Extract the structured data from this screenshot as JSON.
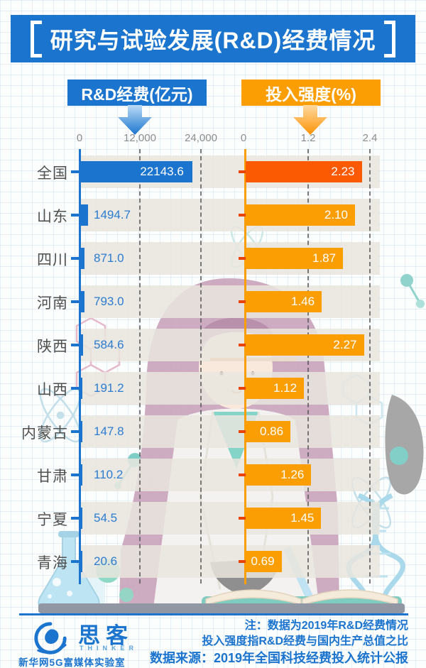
{
  "title": "研究与试验发展(R&D)经费情况",
  "legend": {
    "left": "R&D经费(亿元)",
    "right": "投入强度(%)"
  },
  "axes": {
    "left_ticks": [
      "0",
      "12,000",
      "24,000"
    ],
    "right_ticks": [
      "0",
      "1.2",
      "2.4"
    ]
  },
  "colors": {
    "blue": "#1B74CE",
    "orange": "#FB9E04",
    "highlight_orange": "#FB5A02",
    "value_blue": "#2B7CD0"
  },
  "chart_data": {
    "type": "bar",
    "orientation": "horizontal",
    "title": "研究与试验发展(R&D)经费情况",
    "categories": [
      "全国",
      "山东",
      "四川",
      "河南",
      "陕西",
      "山西",
      "内蒙古",
      "甘肃",
      "宁夏",
      "青海"
    ],
    "series": [
      {
        "name": "R&D经费(亿元)",
        "unit": "亿元",
        "values": [
          22143.6,
          1494.7,
          871.0,
          793.0,
          584.6,
          191.2,
          147.8,
          110.2,
          54.5,
          20.6
        ],
        "xlim": [
          0,
          24000
        ],
        "ticks": [
          0,
          12000,
          24000
        ]
      },
      {
        "name": "投入强度(%)",
        "unit": "%",
        "values": [
          2.23,
          2.1,
          1.87,
          1.46,
          2.27,
          1.12,
          0.86,
          1.26,
          1.45,
          0.69
        ],
        "xlim": [
          0,
          2.4
        ],
        "ticks": [
          0,
          1.2,
          2.4
        ]
      }
    ],
    "grid": "dashed-vertical",
    "legend_position": "top",
    "highlight_category": "全国"
  },
  "rows": [
    {
      "label": "全国",
      "rd": 22143.6,
      "rd_label": "22143.6",
      "intensity": 2.23,
      "intensity_label": "2.23",
      "highlight": true
    },
    {
      "label": "山东",
      "rd": 1494.7,
      "rd_label": "1494.7",
      "intensity": 2.1,
      "intensity_label": "2.10"
    },
    {
      "label": "四川",
      "rd": 871.0,
      "rd_label": "871.0",
      "intensity": 1.87,
      "intensity_label": "1.87"
    },
    {
      "label": "河南",
      "rd": 793.0,
      "rd_label": "793.0",
      "intensity": 1.46,
      "intensity_label": "1.46"
    },
    {
      "label": "陕西",
      "rd": 584.6,
      "rd_label": "584.6",
      "intensity": 2.27,
      "intensity_label": "2.27"
    },
    {
      "label": "山西",
      "rd": 191.2,
      "rd_label": "191.2",
      "intensity": 1.12,
      "intensity_label": "1.12"
    },
    {
      "label": "内蒙古",
      "rd": 147.8,
      "rd_label": "147.8",
      "intensity": 0.86,
      "intensity_label": "0.86"
    },
    {
      "label": "甘肃",
      "rd": 110.2,
      "rd_label": "110.2",
      "intensity": 1.26,
      "intensity_label": "1.26"
    },
    {
      "label": "宁夏",
      "rd": 54.5,
      "rd_label": "54.5",
      "intensity": 1.45,
      "intensity_label": "1.45"
    },
    {
      "label": "青海",
      "rd": 20.6,
      "rd_label": "20.6",
      "intensity": 0.69,
      "intensity_label": "0.69"
    }
  ],
  "footer": {
    "logo_cn": "思客",
    "logo_en": "THINKER",
    "logo_sub": "新华网5G富媒体实验室",
    "note1": "注：数据为2019年R&D经费情况",
    "note2": "投入强度指R&D经费与国内生产总值之比",
    "note3": "数据来源：2019年全国科技经费投入统计公报"
  }
}
